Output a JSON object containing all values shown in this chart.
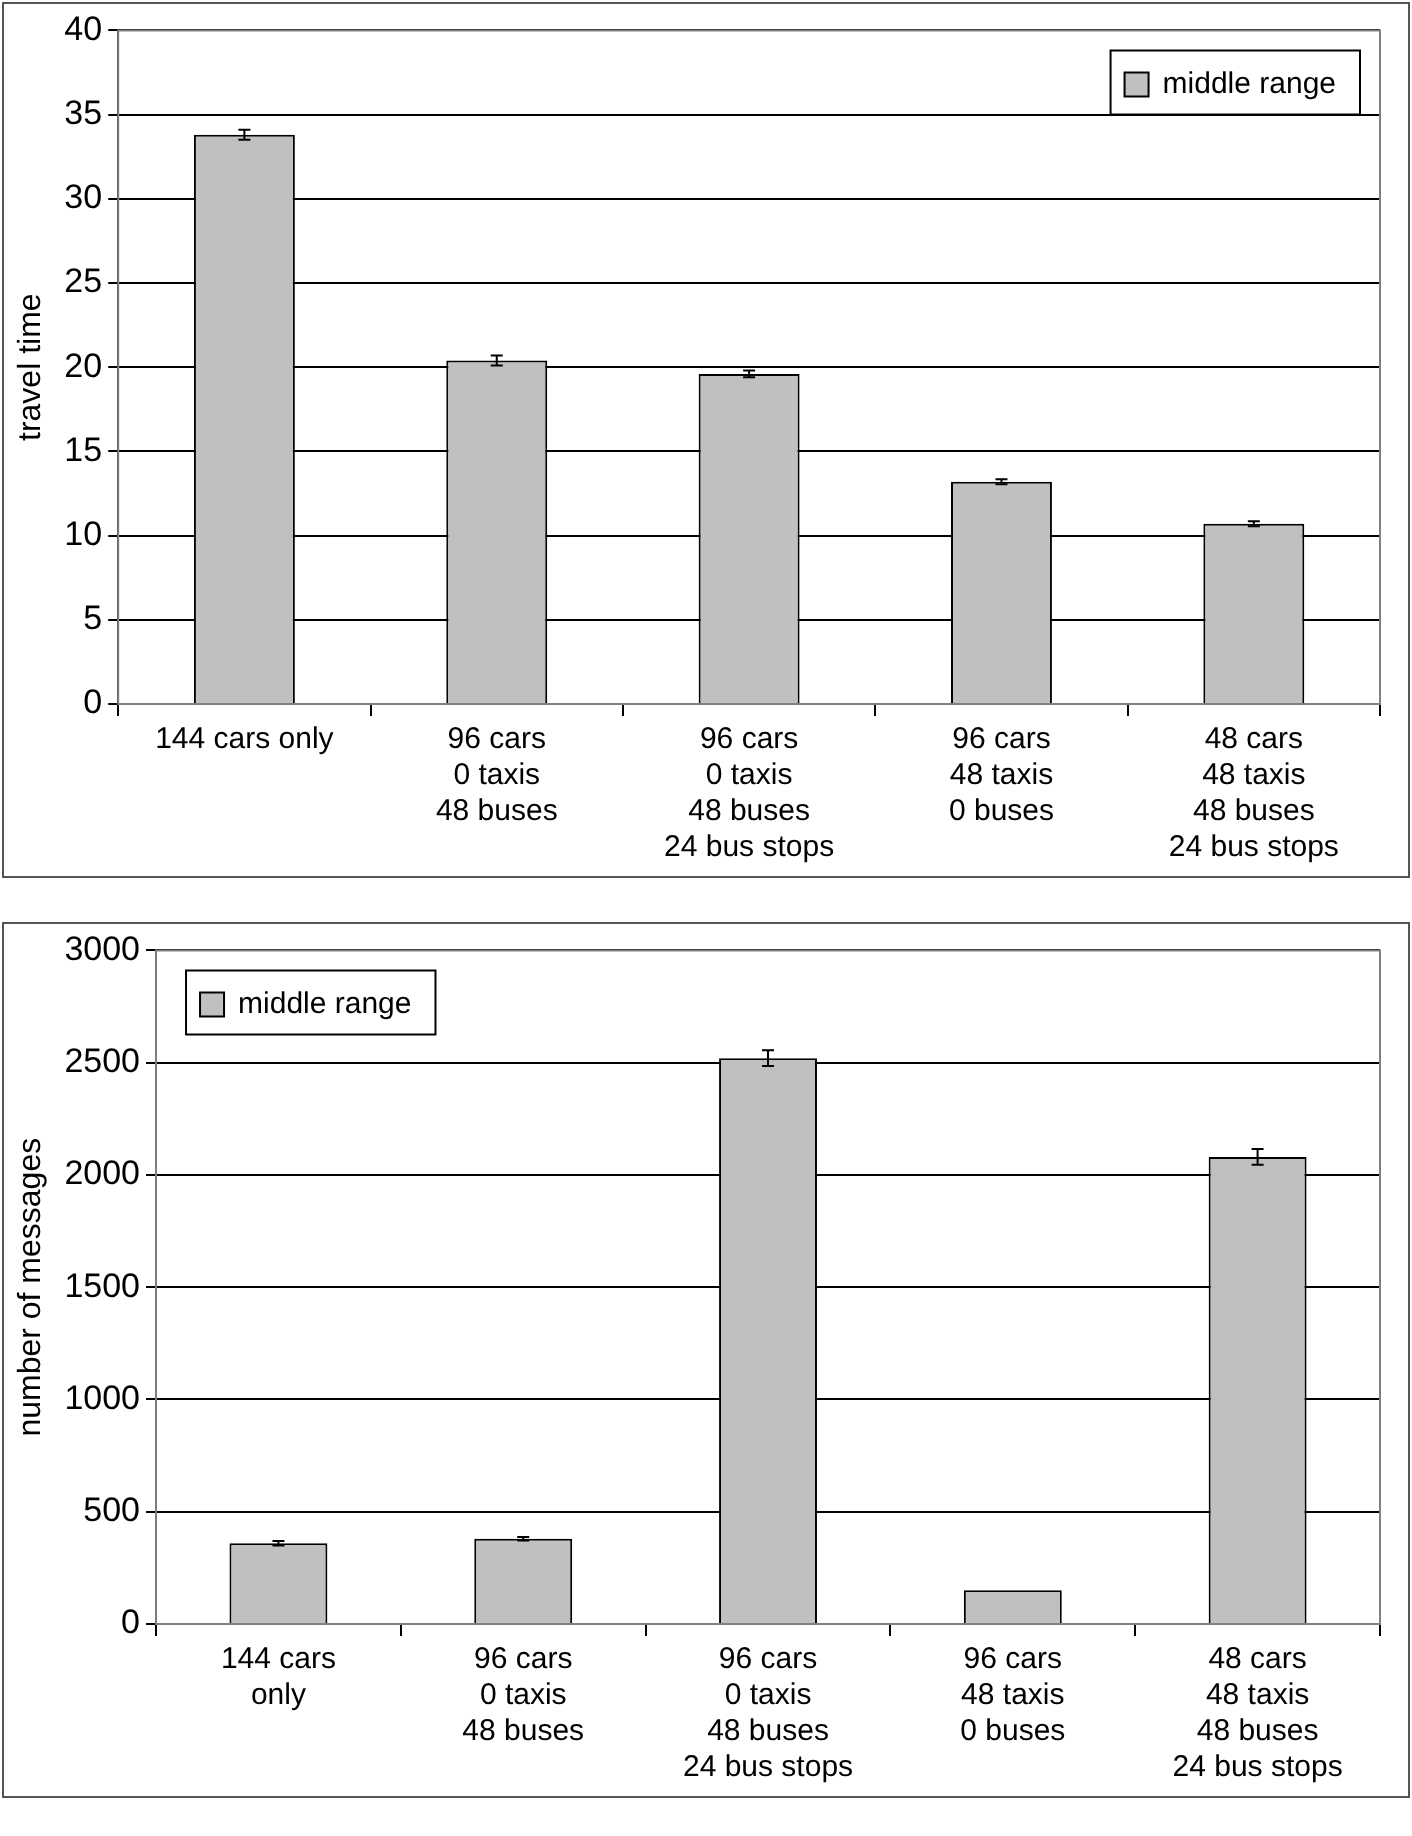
{
  "chart_data": [
    {
      "type": "bar",
      "ylabel": "travel time",
      "categories": [
        "144 cars only",
        "96 cars\n0 taxis\n48 buses",
        "96 cars\n0 taxis\n48 buses\n24 bus stops",
        "96 cars\n48 taxis\n0 buses",
        "48 cars\n48 taxis\n48 buses\n24 bus stops"
      ],
      "series": [
        {
          "name": "middle range",
          "color": "#c0c0c0",
          "values": [
            33.8,
            20.4,
            19.6,
            13.2,
            10.7
          ],
          "errors": [
            0.3,
            0.3,
            0.2,
            0.15,
            0.15
          ]
        }
      ],
      "ylim": [
        0,
        40
      ],
      "yticks": [
        0,
        5,
        10,
        15,
        20,
        25,
        30,
        35,
        40
      ],
      "grid": "y",
      "legend": "top right"
    },
    {
      "type": "bar",
      "ylabel": "number of messages",
      "categories": [
        "144 cars\nonly",
        "96 cars\n0 taxis\n48 buses",
        "96 cars\n0 taxis\n48 buses\n24 bus stops",
        "96 cars\n48 taxis\n0 buses",
        "48 cars\n48 taxis\n48 buses\n24 bus stops"
      ],
      "series": [
        {
          "name": "middle range",
          "color": "#c0c0c0",
          "values": [
            360,
            380,
            2520,
            150,
            2080
          ],
          "errors": [
            10,
            8,
            35,
            null,
            35
          ]
        }
      ],
      "ylim": [
        0,
        3000
      ],
      "yticks": [
        0,
        500,
        1000,
        1500,
        2000,
        2500,
        3000
      ],
      "grid": "y",
      "legend": "top left"
    }
  ]
}
